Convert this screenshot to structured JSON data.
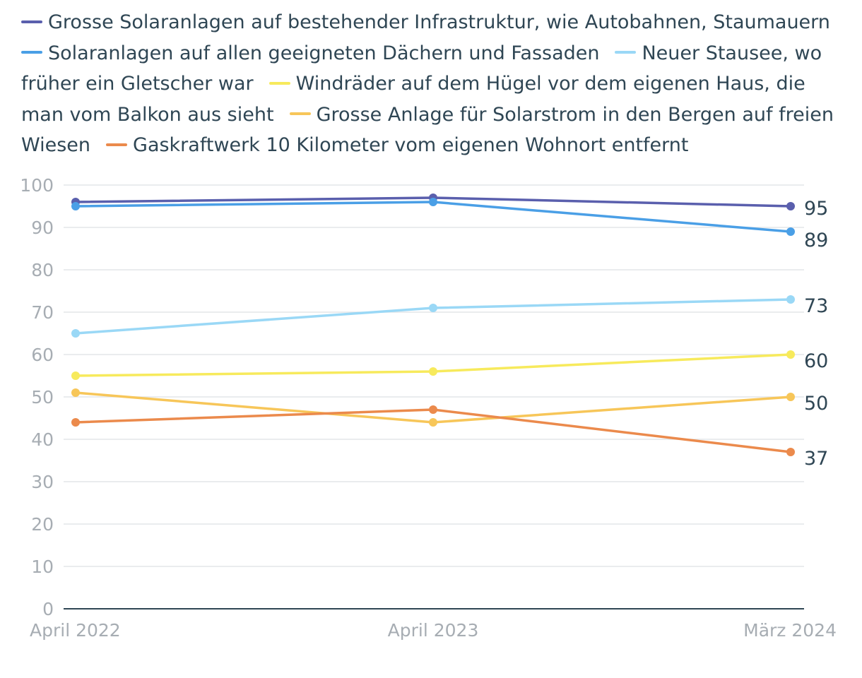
{
  "chart_data": {
    "type": "line",
    "title": "",
    "xlabel": "",
    "ylabel": "",
    "categories": [
      "April 2022",
      "April 2023",
      "März 2024"
    ],
    "ylim": [
      0,
      100
    ],
    "yticks": [
      0,
      10,
      20,
      30,
      40,
      50,
      60,
      70,
      80,
      90,
      100
    ],
    "grid": true,
    "legend_position": "top",
    "series": [
      {
        "name": "Grosse Solaranlagen auf bestehender Infrastruktur, wie Autobahnen, Staumauern",
        "color": "#5a5fad",
        "values": [
          96,
          97,
          95
        ],
        "end_label": "95"
      },
      {
        "name": "Solaranlagen auf allen geeigneten Dächern und Fassaden",
        "color": "#4a9fe6",
        "values": [
          95,
          96,
          89
        ],
        "end_label": "89"
      },
      {
        "name": "Neuer Stausee, wo früher ein Gletscher war",
        "color": "#9ad8f6",
        "values": [
          65,
          71,
          73
        ],
        "end_label": "73"
      },
      {
        "name": "Windräder auf dem Hügel vor dem eigenen Haus, die man vom Balkon aus sieht",
        "color": "#f7ea5c",
        "values": [
          55,
          56,
          60
        ],
        "end_label": "60"
      },
      {
        "name": "Grosse Anlage für Solarstrom in den Bergen auf freien Wiesen",
        "color": "#f7c659",
        "values": [
          51,
          44,
          50
        ],
        "end_label": "50"
      },
      {
        "name": "Gaskraftwerk 10 Kilometer vom eigenen Wohnort entfernt",
        "color": "#eb8a4c",
        "values": [
          44,
          47,
          37
        ],
        "end_label": "37"
      }
    ]
  }
}
